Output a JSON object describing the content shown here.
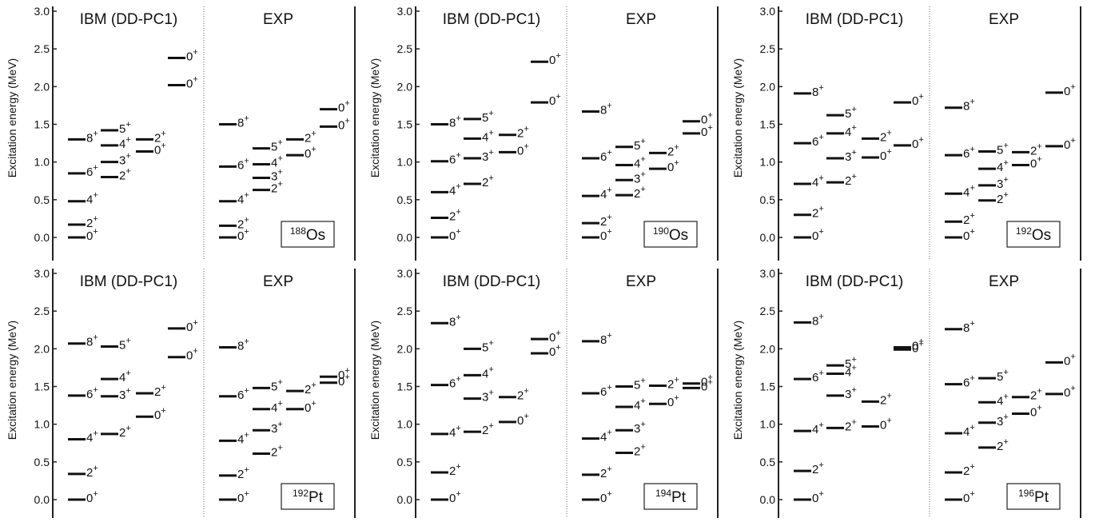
{
  "chart_data": [
    {
      "type": "level-scheme",
      "nucleus": {
        "mass": "188",
        "symbol": "Os"
      },
      "ylabel": "Excitation energy (MeV)",
      "ylim": [
        -0.25,
        3.0
      ],
      "yticks": [
        "0.0",
        "0.5",
        "1.0",
        "1.5",
        "2.0",
        "2.5",
        "3.0"
      ],
      "panels": [
        {
          "title": "IBM (DD-PC1)",
          "levels": [
            {
              "col": 0,
              "e": 0.0,
              "j": "0"
            },
            {
              "col": 0,
              "e": 0.17,
              "j": "2"
            },
            {
              "col": 0,
              "e": 0.48,
              "j": "4"
            },
            {
              "col": 0,
              "e": 0.85,
              "j": "6"
            },
            {
              "col": 0,
              "e": 1.3,
              "j": "8"
            },
            {
              "col": 1,
              "e": 0.8,
              "j": "2"
            },
            {
              "col": 1,
              "e": 1.0,
              "j": "3"
            },
            {
              "col": 1,
              "e": 1.22,
              "j": "4"
            },
            {
              "col": 1,
              "e": 1.42,
              "j": "5"
            },
            {
              "col": 2,
              "e": 1.14,
              "j": "0"
            },
            {
              "col": 2,
              "e": 1.3,
              "j": "2"
            },
            {
              "col": 3,
              "e": 2.02,
              "j": "0"
            },
            {
              "col": 3,
              "e": 2.38,
              "j": "0"
            }
          ]
        },
        {
          "title": "EXP",
          "levels": [
            {
              "col": 0,
              "e": 0.0,
              "j": "0"
            },
            {
              "col": 0,
              "e": 0.155,
              "j": "2"
            },
            {
              "col": 0,
              "e": 0.48,
              "j": "4"
            },
            {
              "col": 0,
              "e": 0.94,
              "j": "6"
            },
            {
              "col": 0,
              "e": 1.5,
              "j": "8"
            },
            {
              "col": 1,
              "e": 0.63,
              "j": "2"
            },
            {
              "col": 1,
              "e": 0.79,
              "j": "3"
            },
            {
              "col": 1,
              "e": 0.97,
              "j": "4"
            },
            {
              "col": 1,
              "e": 1.18,
              "j": "5"
            },
            {
              "col": 2,
              "e": 1.09,
              "j": "0"
            },
            {
              "col": 2,
              "e": 1.3,
              "j": "2"
            },
            {
              "col": 3,
              "e": 1.47,
              "j": "0"
            },
            {
              "col": 3,
              "e": 1.7,
              "j": "0"
            }
          ]
        }
      ]
    },
    {
      "type": "level-scheme",
      "nucleus": {
        "mass": "190",
        "symbol": "Os"
      },
      "ylabel": "Excitation energy (MeV)",
      "ylim": [
        -0.25,
        3.0
      ],
      "yticks": [
        "0.0",
        "0.5",
        "1.0",
        "1.5",
        "2.0",
        "2.5",
        "3.0"
      ],
      "panels": [
        {
          "title": "IBM (DD-PC1)",
          "levels": [
            {
              "col": 0,
              "e": 0.0,
              "j": "0"
            },
            {
              "col": 0,
              "e": 0.26,
              "j": "2"
            },
            {
              "col": 0,
              "e": 0.6,
              "j": "4"
            },
            {
              "col": 0,
              "e": 1.01,
              "j": "6"
            },
            {
              "col": 0,
              "e": 1.5,
              "j": "8"
            },
            {
              "col": 1,
              "e": 0.71,
              "j": "2"
            },
            {
              "col": 1,
              "e": 1.05,
              "j": "3"
            },
            {
              "col": 1,
              "e": 1.31,
              "j": "4"
            },
            {
              "col": 1,
              "e": 1.57,
              "j": "5"
            },
            {
              "col": 2,
              "e": 1.13,
              "j": "0"
            },
            {
              "col": 2,
              "e": 1.36,
              "j": "2"
            },
            {
              "col": 3,
              "e": 1.79,
              "j": "0"
            },
            {
              "col": 3,
              "e": 2.33,
              "j": "0"
            }
          ]
        },
        {
          "title": "EXP",
          "levels": [
            {
              "col": 0,
              "e": 0.0,
              "j": "0"
            },
            {
              "col": 0,
              "e": 0.19,
              "j": "2"
            },
            {
              "col": 0,
              "e": 0.55,
              "j": "4"
            },
            {
              "col": 0,
              "e": 1.05,
              "j": "6"
            },
            {
              "col": 0,
              "e": 1.67,
              "j": "8"
            },
            {
              "col": 1,
              "e": 0.56,
              "j": "2"
            },
            {
              "col": 1,
              "e": 0.76,
              "j": "3"
            },
            {
              "col": 1,
              "e": 0.96,
              "j": "4"
            },
            {
              "col": 1,
              "e": 1.2,
              "j": "5"
            },
            {
              "col": 2,
              "e": 0.91,
              "j": "0"
            },
            {
              "col": 2,
              "e": 1.12,
              "j": "2"
            },
            {
              "col": 3,
              "e": 1.38,
              "j": "0"
            },
            {
              "col": 3,
              "e": 1.54,
              "j": "0"
            }
          ]
        }
      ]
    },
    {
      "type": "level-scheme",
      "nucleus": {
        "mass": "192",
        "symbol": "Os"
      },
      "ylabel": "Excitation energy (MeV)",
      "ylim": [
        -0.25,
        3.0
      ],
      "yticks": [
        "0.0",
        "0.5",
        "1.0",
        "1.5",
        "2.0",
        "2.5",
        "3.0"
      ],
      "panels": [
        {
          "title": "IBM (DD-PC1)",
          "levels": [
            {
              "col": 0,
              "e": 0.0,
              "j": "0"
            },
            {
              "col": 0,
              "e": 0.3,
              "j": "2"
            },
            {
              "col": 0,
              "e": 0.71,
              "j": "4"
            },
            {
              "col": 0,
              "e": 1.25,
              "j": "6"
            },
            {
              "col": 0,
              "e": 1.91,
              "j": "8"
            },
            {
              "col": 1,
              "e": 0.73,
              "j": "2"
            },
            {
              "col": 1,
              "e": 1.05,
              "j": "3"
            },
            {
              "col": 1,
              "e": 1.38,
              "j": "4"
            },
            {
              "col": 1,
              "e": 1.62,
              "j": "5"
            },
            {
              "col": 2,
              "e": 1.06,
              "j": "0"
            },
            {
              "col": 2,
              "e": 1.31,
              "j": "2"
            },
            {
              "col": 3,
              "e": 1.22,
              "j": "0"
            },
            {
              "col": 3,
              "e": 1.79,
              "j": "0"
            }
          ]
        },
        {
          "title": "EXP",
          "levels": [
            {
              "col": 0,
              "e": 0.0,
              "j": "0"
            },
            {
              "col": 0,
              "e": 0.21,
              "j": "2"
            },
            {
              "col": 0,
              "e": 0.58,
              "j": "4"
            },
            {
              "col": 0,
              "e": 1.09,
              "j": "6"
            },
            {
              "col": 0,
              "e": 1.72,
              "j": "8"
            },
            {
              "col": 1,
              "e": 0.49,
              "j": "2"
            },
            {
              "col": 1,
              "e": 0.69,
              "j": "3"
            },
            {
              "col": 1,
              "e": 0.91,
              "j": "4"
            },
            {
              "col": 1,
              "e": 1.14,
              "j": "5"
            },
            {
              "col": 2,
              "e": 0.96,
              "j": "0"
            },
            {
              "col": 2,
              "e": 1.13,
              "j": "2"
            },
            {
              "col": 3,
              "e": 1.21,
              "j": "0"
            },
            {
              "col": 3,
              "e": 1.92,
              "j": "0"
            }
          ]
        }
      ]
    },
    {
      "type": "level-scheme",
      "nucleus": {
        "mass": "192",
        "symbol": "Pt"
      },
      "ylabel": "Excitation energy (MeV)",
      "ylim": [
        -0.25,
        3.0
      ],
      "yticks": [
        "0.0",
        "0.5",
        "1.0",
        "1.5",
        "2.0",
        "2.5",
        "3.0"
      ],
      "panels": [
        {
          "title": "IBM (DD-PC1)",
          "levels": [
            {
              "col": 0,
              "e": 0.0,
              "j": "0"
            },
            {
              "col": 0,
              "e": 0.34,
              "j": "2"
            },
            {
              "col": 0,
              "e": 0.8,
              "j": "4"
            },
            {
              "col": 0,
              "e": 1.38,
              "j": "6"
            },
            {
              "col": 0,
              "e": 2.07,
              "j": "8"
            },
            {
              "col": 1,
              "e": 0.87,
              "j": "2"
            },
            {
              "col": 1,
              "e": 1.37,
              "j": "3"
            },
            {
              "col": 1,
              "e": 1.6,
              "j": "4"
            },
            {
              "col": 1,
              "e": 2.03,
              "j": "5"
            },
            {
              "col": 2,
              "e": 1.1,
              "j": "0"
            },
            {
              "col": 2,
              "e": 1.41,
              "j": "2"
            },
            {
              "col": 3,
              "e": 1.89,
              "j": "0"
            },
            {
              "col": 3,
              "e": 2.27,
              "j": "0"
            }
          ]
        },
        {
          "title": "EXP",
          "levels": [
            {
              "col": 0,
              "e": 0.0,
              "j": "0"
            },
            {
              "col": 0,
              "e": 0.32,
              "j": "2"
            },
            {
              "col": 0,
              "e": 0.78,
              "j": "4"
            },
            {
              "col": 0,
              "e": 1.37,
              "j": "6"
            },
            {
              "col": 0,
              "e": 2.02,
              "j": "8"
            },
            {
              "col": 1,
              "e": 0.61,
              "j": "2"
            },
            {
              "col": 1,
              "e": 0.92,
              "j": "3"
            },
            {
              "col": 1,
              "e": 1.2,
              "j": "4"
            },
            {
              "col": 1,
              "e": 1.48,
              "j": "5"
            },
            {
              "col": 2,
              "e": 1.2,
              "j": "0"
            },
            {
              "col": 2,
              "e": 1.44,
              "j": "2"
            },
            {
              "col": 3,
              "e": 1.55,
              "j": "0"
            },
            {
              "col": 3,
              "e": 1.63,
              "j": "0"
            }
          ]
        }
      ]
    },
    {
      "type": "level-scheme",
      "nucleus": {
        "mass": "194",
        "symbol": "Pt"
      },
      "ylabel": "Excitation energy (MeV)",
      "ylim": [
        -0.25,
        3.0
      ],
      "yticks": [
        "0.0",
        "0.5",
        "1.0",
        "1.5",
        "2.0",
        "2.5",
        "3.0"
      ],
      "panels": [
        {
          "title": "IBM (DD-PC1)",
          "levels": [
            {
              "col": 0,
              "e": 0.0,
              "j": "0"
            },
            {
              "col": 0,
              "e": 0.36,
              "j": "2"
            },
            {
              "col": 0,
              "e": 0.87,
              "j": "4"
            },
            {
              "col": 0,
              "e": 1.52,
              "j": "6"
            },
            {
              "col": 0,
              "e": 2.34,
              "j": "8"
            },
            {
              "col": 1,
              "e": 0.9,
              "j": "2"
            },
            {
              "col": 1,
              "e": 1.34,
              "j": "3"
            },
            {
              "col": 1,
              "e": 1.65,
              "j": "4"
            },
            {
              "col": 1,
              "e": 2.0,
              "j": "5"
            },
            {
              "col": 2,
              "e": 1.03,
              "j": "0"
            },
            {
              "col": 2,
              "e": 1.36,
              "j": "2"
            },
            {
              "col": 3,
              "e": 1.94,
              "j": "0"
            },
            {
              "col": 3,
              "e": 2.13,
              "j": "0"
            }
          ]
        },
        {
          "title": "EXP",
          "levels": [
            {
              "col": 0,
              "e": 0.0,
              "j": "0"
            },
            {
              "col": 0,
              "e": 0.33,
              "j": "2"
            },
            {
              "col": 0,
              "e": 0.81,
              "j": "4"
            },
            {
              "col": 0,
              "e": 1.41,
              "j": "6"
            },
            {
              "col": 0,
              "e": 2.1,
              "j": "8"
            },
            {
              "col": 1,
              "e": 0.62,
              "j": "2"
            },
            {
              "col": 1,
              "e": 0.92,
              "j": "3"
            },
            {
              "col": 1,
              "e": 1.23,
              "j": "4"
            },
            {
              "col": 1,
              "e": 1.5,
              "j": "5"
            },
            {
              "col": 2,
              "e": 1.27,
              "j": "0"
            },
            {
              "col": 2,
              "e": 1.51,
              "j": "2"
            },
            {
              "col": 3,
              "e": 1.48,
              "j": "0"
            },
            {
              "col": 3,
              "e": 1.54,
              "j": "0"
            }
          ]
        }
      ]
    },
    {
      "type": "level-scheme",
      "nucleus": {
        "mass": "196",
        "symbol": "Pt"
      },
      "ylabel": "Excitation energy (MeV)",
      "ylim": [
        -0.25,
        3.0
      ],
      "yticks": [
        "0.0",
        "0.5",
        "1.0",
        "1.5",
        "2.0",
        "2.5",
        "3.0"
      ],
      "panels": [
        {
          "title": "IBM (DD-PC1)",
          "levels": [
            {
              "col": 0,
              "e": 0.0,
              "j": "0"
            },
            {
              "col": 0,
              "e": 0.38,
              "j": "2"
            },
            {
              "col": 0,
              "e": 0.91,
              "j": "4"
            },
            {
              "col": 0,
              "e": 1.6,
              "j": "6"
            },
            {
              "col": 0,
              "e": 2.35,
              "j": "8"
            },
            {
              "col": 1,
              "e": 0.95,
              "j": "2"
            },
            {
              "col": 1,
              "e": 1.38,
              "j": "3"
            },
            {
              "col": 1,
              "e": 1.67,
              "j": "4"
            },
            {
              "col": 1,
              "e": 1.78,
              "j": "5"
            },
            {
              "col": 2,
              "e": 0.97,
              "j": "0"
            },
            {
              "col": 2,
              "e": 1.3,
              "j": "2"
            },
            {
              "col": 3,
              "e": 1.99,
              "j": "0"
            },
            {
              "col": 3,
              "e": 2.02,
              "j": "0"
            }
          ]
        },
        {
          "title": "EXP",
          "levels": [
            {
              "col": 0,
              "e": 0.0,
              "j": "0"
            },
            {
              "col": 0,
              "e": 0.36,
              "j": "2"
            },
            {
              "col": 0,
              "e": 0.88,
              "j": "4"
            },
            {
              "col": 0,
              "e": 1.53,
              "j": "6"
            },
            {
              "col": 0,
              "e": 2.26,
              "j": "8"
            },
            {
              "col": 1,
              "e": 0.69,
              "j": "2"
            },
            {
              "col": 1,
              "e": 1.02,
              "j": "3"
            },
            {
              "col": 1,
              "e": 1.29,
              "j": "4"
            },
            {
              "col": 1,
              "e": 1.61,
              "j": "5"
            },
            {
              "col": 2,
              "e": 1.14,
              "j": "0"
            },
            {
              "col": 2,
              "e": 1.36,
              "j": "2"
            },
            {
              "col": 3,
              "e": 1.4,
              "j": "0"
            },
            {
              "col": 3,
              "e": 1.82,
              "j": "0"
            }
          ]
        }
      ]
    }
  ]
}
